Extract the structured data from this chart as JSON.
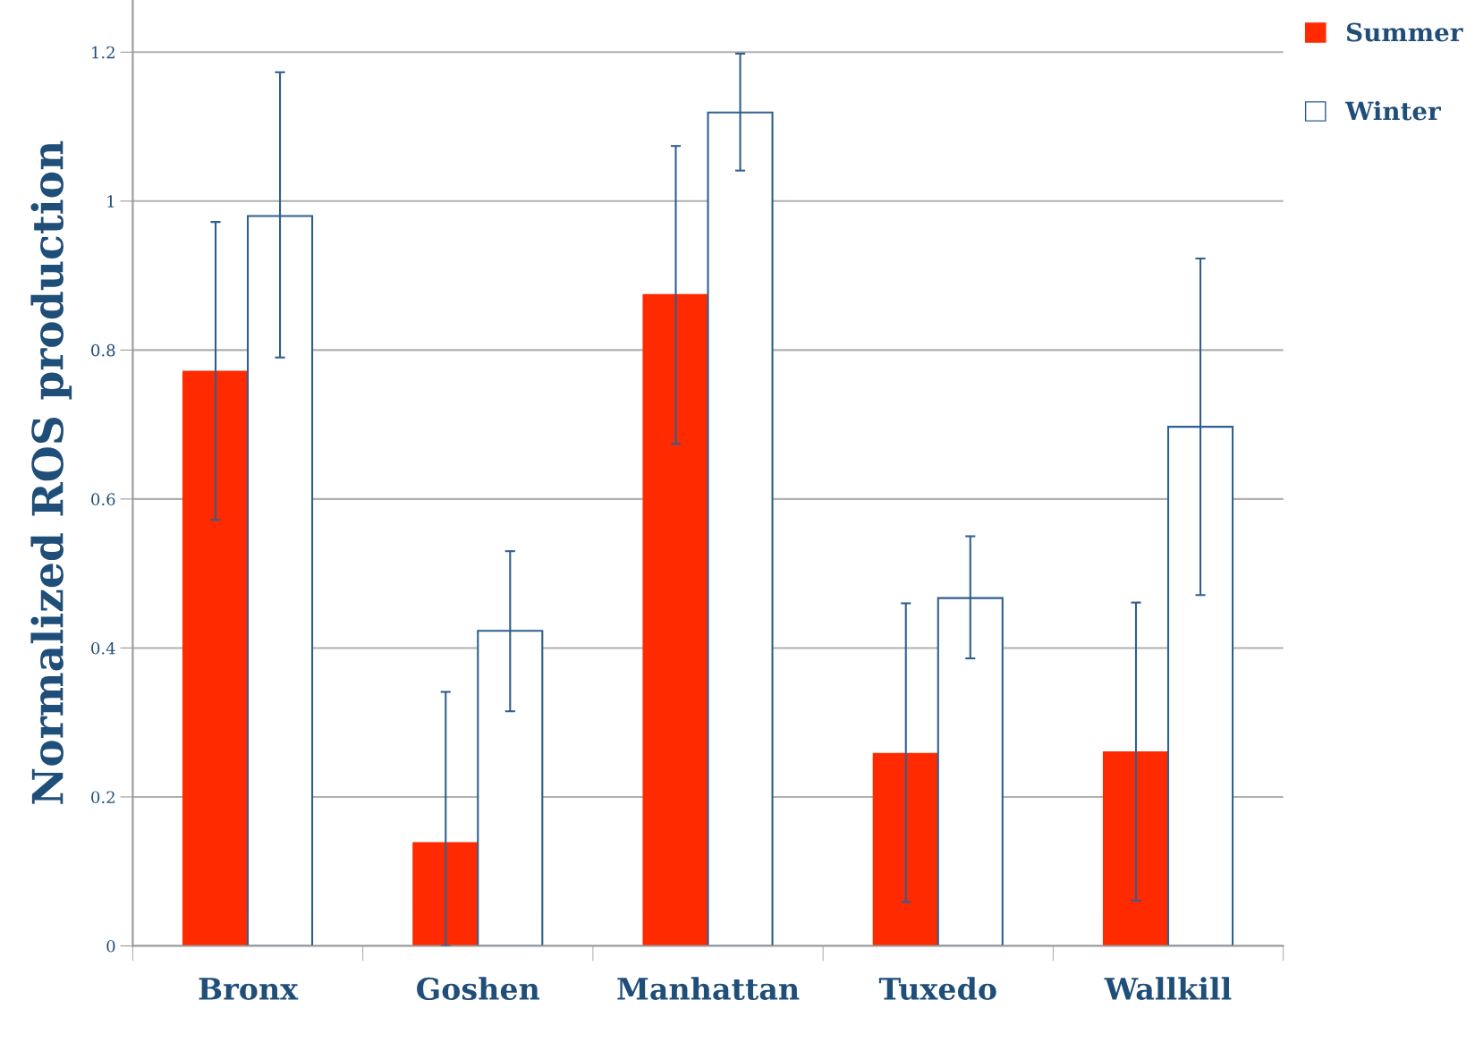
{
  "chart_data": {
    "type": "bar",
    "ylabel": "Normalized ROS production",
    "categories": [
      "Bronx",
      "Goshen",
      "Manhattan",
      "Tuxedo",
      "Wallkill"
    ],
    "series": [
      {
        "name": "Summer",
        "color": "#ff2a00",
        "values": [
          0.771,
          0.138,
          0.874,
          0.258,
          0.26
        ],
        "errors": [
          [
            0.572,
            0.972
          ],
          [
            0,
            0.341
          ],
          [
            0.674,
            1.074
          ],
          [
            0.059,
            0.46
          ],
          [
            0.061,
            0.461
          ]
        ]
      },
      {
        "name": "Winter",
        "color": "#ffffff",
        "values": [
          0.98,
          0.423,
          1.119,
          0.467,
          0.697
        ],
        "errors": [
          [
            0.79,
            1.173
          ],
          [
            0.315,
            0.53
          ],
          [
            1.041,
            1.198
          ],
          [
            0.386,
            0.55
          ],
          [
            0.471,
            0.923
          ]
        ]
      }
    ],
    "ylim": [
      0,
      1.27
    ],
    "yticks": [
      0,
      0.2,
      0.4,
      0.6,
      0.8,
      1,
      1.2
    ],
    "grid": "y",
    "legend": "top right"
  }
}
